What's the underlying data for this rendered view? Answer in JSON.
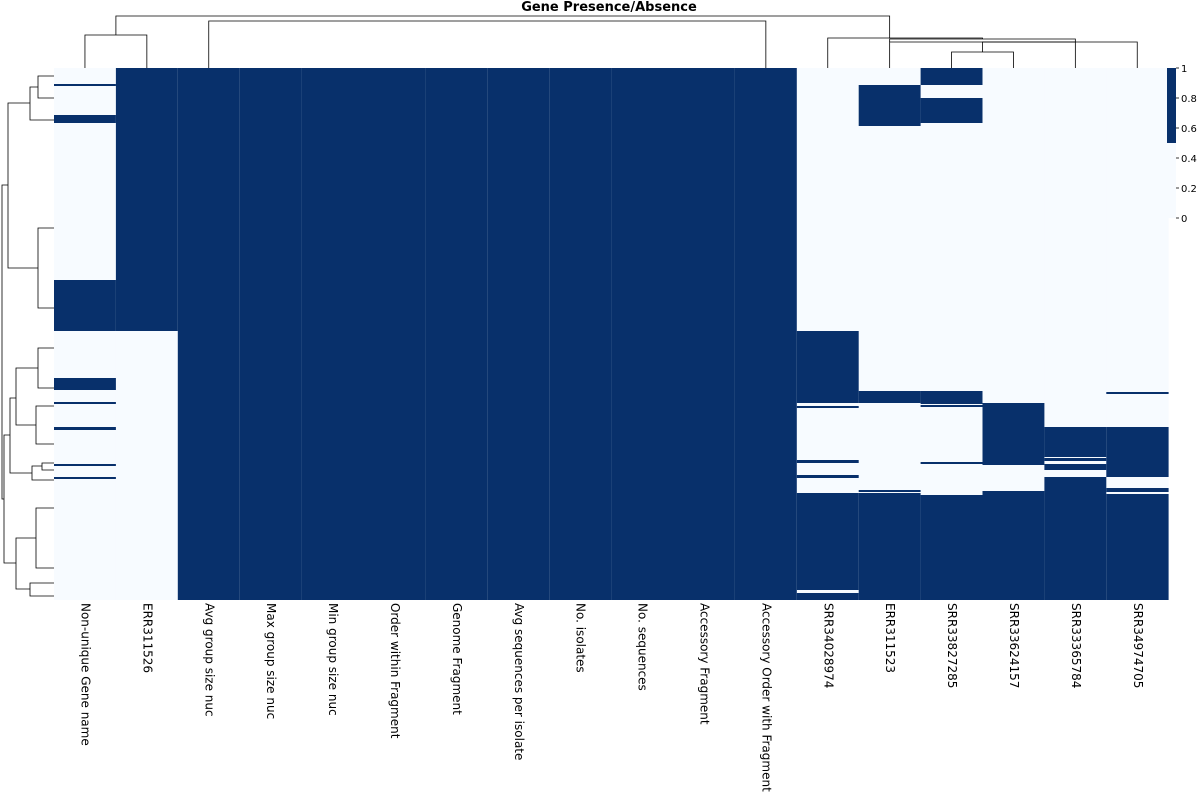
{
  "chart_data": {
    "type": "heatmap",
    "title": "Gene Presence/Absence",
    "columns": [
      "Non-unique Gene name",
      "ERR311526",
      "Avg group size nuc",
      "Max group size nuc",
      "Min group size nuc",
      "Order within Fragment",
      "Genome Fragment",
      "Avg sequences per isolate",
      "No. isolates",
      "No. sequences",
      "Accessory Fragment",
      "Accessory Order with Fragment",
      "SRR34028974",
      "ERR311523",
      "SRR33827285",
      "SRR33624157",
      "SRR33365784",
      "SRR34974705"
    ],
    "rows_total": 532,
    "present_runs": [
      [
        [
          16,
          18
        ],
        [
          47,
          55
        ],
        [
          212,
          263
        ],
        [
          310,
          322
        ],
        [
          334,
          336
        ],
        [
          359,
          362
        ],
        [
          396,
          398
        ],
        [
          409,
          411
        ]
      ],
      [
        [
          0,
          263
        ]
      ],
      [
        [
          0,
          532
        ]
      ],
      [
        [
          0,
          532
        ]
      ],
      [
        [
          0,
          532
        ]
      ],
      [
        [
          0,
          532
        ]
      ],
      [
        [
          0,
          532
        ]
      ],
      [
        [
          0,
          532
        ]
      ],
      [
        [
          0,
          532
        ]
      ],
      [
        [
          0,
          532
        ]
      ],
      [
        [
          0,
          532
        ]
      ],
      [
        [
          0,
          532
        ]
      ],
      [
        [
          263,
          335
        ],
        [
          338,
          340
        ],
        [
          392,
          395
        ],
        [
          407,
          410
        ],
        [
          425,
          522
        ],
        [
          525,
          532
        ]
      ],
      [
        [
          17,
          58
        ],
        [
          323,
          335
        ],
        [
          422,
          424
        ],
        [
          425,
          532
        ]
      ],
      [
        [
          0,
          17
        ],
        [
          30,
          55
        ],
        [
          323,
          336
        ],
        [
          337,
          339
        ],
        [
          394,
          396
        ],
        [
          427,
          532
        ]
      ],
      [
        [
          335,
          397
        ],
        [
          423,
          532
        ]
      ],
      [
        [
          359,
          389
        ],
        [
          390,
          393
        ],
        [
          396,
          402
        ],
        [
          409,
          532
        ]
      ],
      [
        [
          324,
          326
        ],
        [
          359,
          409
        ],
        [
          420,
          424
        ],
        [
          426,
          532
        ]
      ]
    ],
    "colorbar": {
      "ticks": [
        "1",
        "0.8",
        "0.6",
        "0.4",
        "0.2",
        "0"
      ],
      "colors": [
        "#08306b",
        "#f7fbff"
      ]
    },
    "colors": {
      "present": "#08306b",
      "absent": "#f7fbff",
      "dendrogram": "#000000"
    }
  }
}
